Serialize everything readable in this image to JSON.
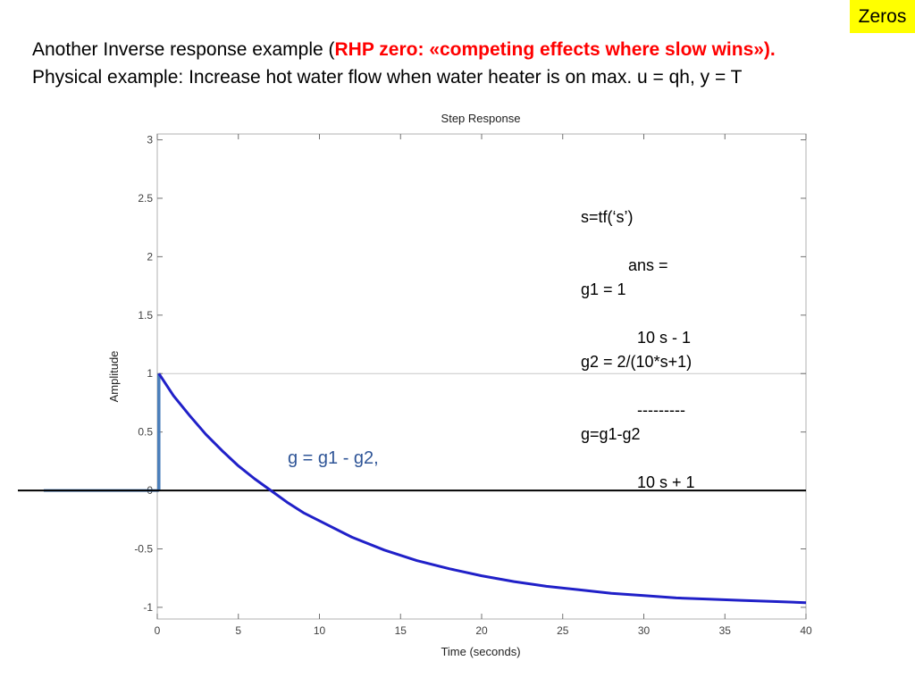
{
  "badge": "Zeros",
  "headline": {
    "line1_prefix": "Another Inverse response example (",
    "line1_highlight": "RHP zero: «competing effects where slow wins»).",
    "line2": "Physical example: Increase hot water flow when water heater is on max. u = qh, y = T"
  },
  "code_block": {
    "lines": [
      "s=tf(‘s’)",
      "g1 = 1",
      "g2 = 2/(10*s+1)",
      "g=g1-g2"
    ],
    "ans_label": "ans =",
    "numerator": "10 s - 1",
    "fraction_bar": "---------",
    "denominator": "10 s + 1"
  },
  "annotation": "g = g1 - g2,",
  "chart_data": {
    "type": "line",
    "title": "Step Response",
    "xlabel": "Time (seconds)",
    "ylabel": "Amplitude",
    "xlim": [
      0,
      40
    ],
    "ylim": [
      -1.1,
      3.05
    ],
    "xticks": [
      0,
      5,
      10,
      15,
      20,
      25,
      30,
      35,
      40
    ],
    "xtick_labels": [
      "0",
      "5",
      "10",
      "15",
      "20",
      "25",
      "30",
      "35",
      "40"
    ],
    "yticks": [
      -1,
      -0.5,
      0,
      0.5,
      1,
      1.5,
      2,
      2.5,
      3
    ],
    "ytick_labels": [
      "-1",
      "-0.5",
      "0",
      "0.5",
      "1",
      "1.5",
      "2",
      "2.5",
      "3"
    ],
    "grid": false,
    "line_color": "#2020c8",
    "step_color": "#4a7ebb",
    "series": [
      {
        "x": [
          0,
          1,
          2,
          3,
          4,
          5,
          6,
          7,
          8,
          9,
          10,
          12,
          14,
          16,
          18,
          20,
          22,
          24,
          26,
          28,
          30,
          32,
          34,
          36,
          38,
          40
        ],
        "values": [
          1.0,
          0.81,
          0.64,
          0.48,
          0.34,
          0.21,
          0.1,
          0.0,
          -0.1,
          -0.19,
          -0.26,
          -0.4,
          -0.51,
          -0.6,
          -0.67,
          -0.73,
          -0.78,
          -0.82,
          -0.85,
          -0.88,
          -0.9,
          -0.92,
          -0.93,
          -0.94,
          -0.95,
          -0.96
        ]
      }
    ],
    "step_edge": {
      "x": 0.1,
      "from": 0,
      "to": 1
    },
    "pre_step": {
      "x_start": -7,
      "value": 0
    }
  }
}
